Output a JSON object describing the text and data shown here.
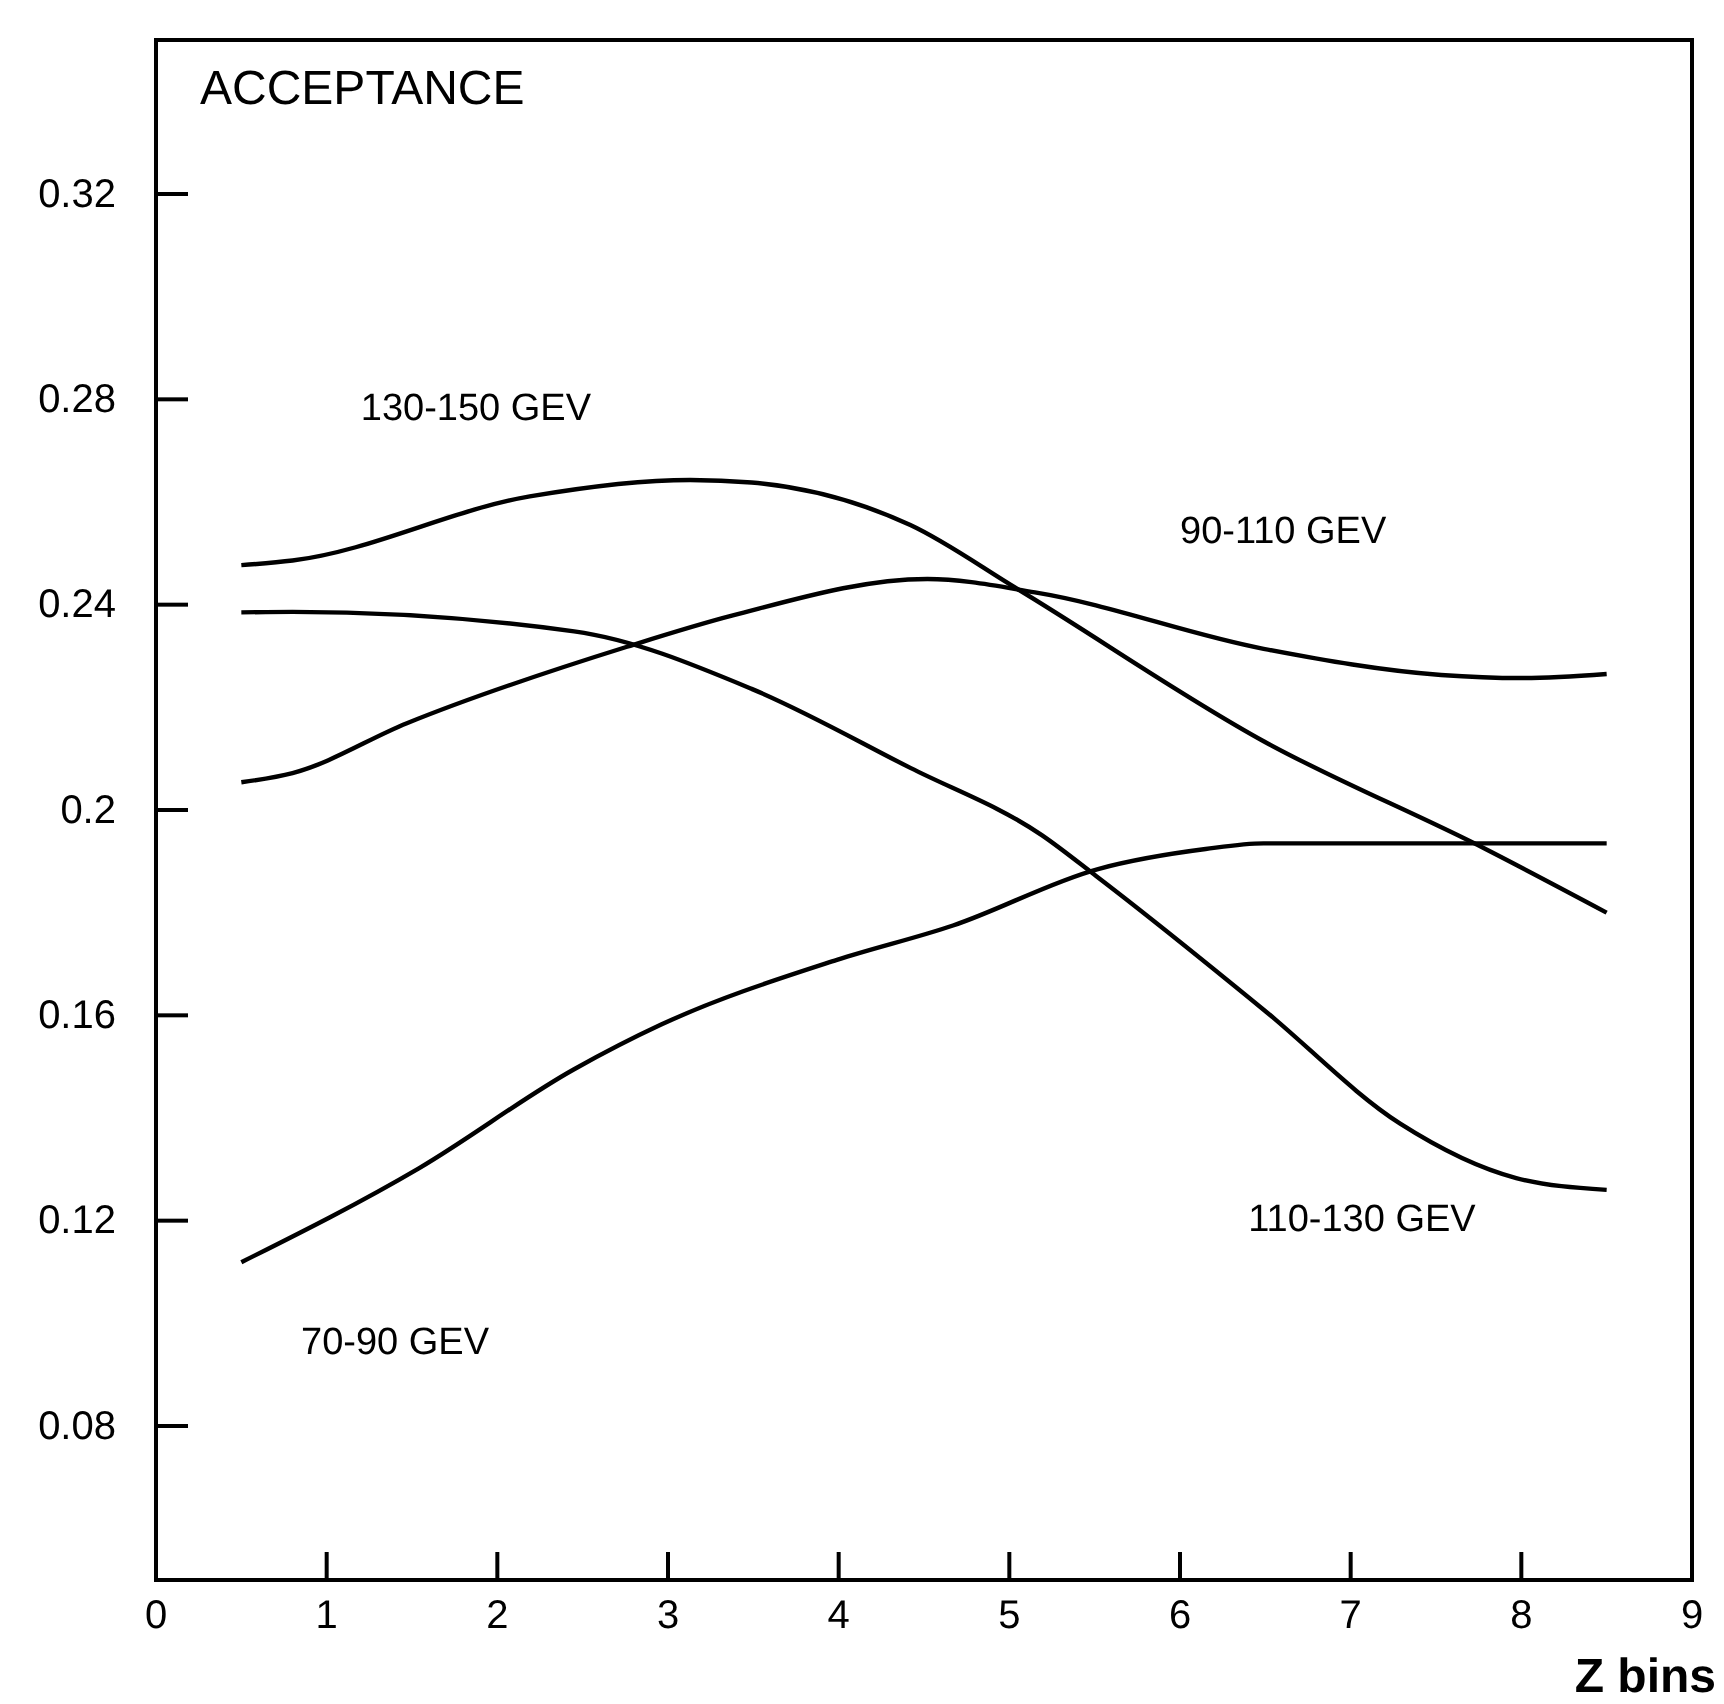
{
  "chart_data": {
    "type": "line",
    "ylabel": "ACCEPTANCE",
    "xlabel": "Z bins",
    "xlim": [
      0,
      9
    ],
    "xticks": [
      0,
      1,
      2,
      3,
      4,
      5,
      6,
      7,
      8,
      9
    ],
    "ylim": [
      0.05,
      0.35
    ],
    "yticks": [
      0.08,
      0.12,
      0.16,
      0.2,
      0.24,
      0.28,
      0.32
    ],
    "grid": false,
    "legend": false,
    "marker": "none",
    "line_style": "solid",
    "series": [
      {
        "name": "130-150 GEV",
        "color": "#000000",
        "x": [
          0.5,
          0.8,
          2.19,
          3.13,
          3.49,
          4.42,
          5.04,
          6.49,
          7.79,
          8.5
        ],
        "values": [
          0.2477,
          0.2486,
          0.2611,
          0.2643,
          0.2638,
          0.2555,
          0.2432,
          0.2134,
          0.1924,
          0.18
        ]
      },
      {
        "name": "90-110 GEV",
        "color": "#000000",
        "x": [
          0.5,
          0.8,
          1.47,
          2.76,
          3.38,
          4.52,
          5.15,
          6.49,
          7.53,
          8.0,
          8.5
        ],
        "values": [
          0.2054,
          0.2072,
          0.2169,
          0.2318,
          0.2379,
          0.245,
          0.2424,
          0.2314,
          0.2263,
          0.2257,
          0.2265
        ]
      },
      {
        "name": "70-90 GEV",
        "color": "#000000",
        "x": [
          0.5,
          1.54,
          2.45,
          2.96,
          3.99,
          4.67,
          5.52,
          6.15,
          6.49,
          8.5
        ],
        "values": [
          0.1119,
          0.1302,
          0.1495,
          0.1582,
          0.1708,
          0.1775,
          0.1885,
          0.1924,
          0.1935,
          0.1935
        ]
      },
      {
        "name": "110-130 GEV",
        "color": "#000000",
        "x": [
          0.5,
          0.8,
          2.45,
          3.49,
          4.42,
          5.19,
          5.51,
          6.49,
          7.29,
          7.97,
          8.5
        ],
        "values": [
          0.2385,
          0.2386,
          0.2348,
          0.2236,
          0.2082,
          0.1951,
          0.1871,
          0.1611,
          0.1389,
          0.1283,
          0.126
        ]
      }
    ]
  }
}
